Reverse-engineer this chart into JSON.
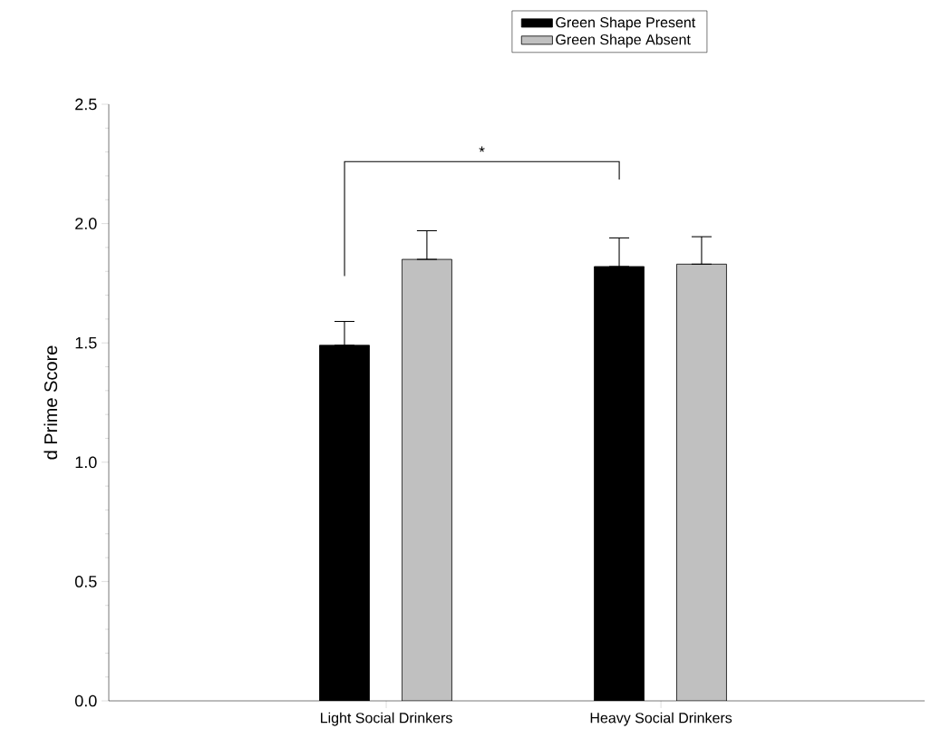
{
  "chart_data": {
    "type": "bar",
    "ylabel": "d Prime Score",
    "categories": [
      "Light Social Drinkers",
      "Heavy Social Drinkers"
    ],
    "series": [
      {
        "name": "Green Shape Present",
        "color": "#000000",
        "values": [
          1.49,
          1.82
        ],
        "errors": [
          [
            1.49,
            1.59
          ],
          [
            1.82,
            1.94
          ]
        ]
      },
      {
        "name": "Green Shape Absent",
        "color": "#c0c0c0",
        "values": [
          1.85,
          1.83
        ],
        "errors": [
          [
            1.85,
            1.97
          ],
          [
            1.83,
            1.945
          ]
        ]
      }
    ],
    "ylim": [
      0,
      2.5
    ],
    "yticks": [
      {
        "value": 0,
        "label": "0.0"
      },
      {
        "value": 0.5,
        "label": "0.5"
      },
      {
        "value": 1,
        "label": "1.0"
      },
      {
        "value": 1.5,
        "label": "1.5"
      },
      {
        "value": 2,
        "label": "2.0"
      },
      {
        "value": 2.5,
        "label": "2.5"
      }
    ],
    "legend": "top right",
    "grid": false,
    "annotations": [
      "*"
    ]
  }
}
